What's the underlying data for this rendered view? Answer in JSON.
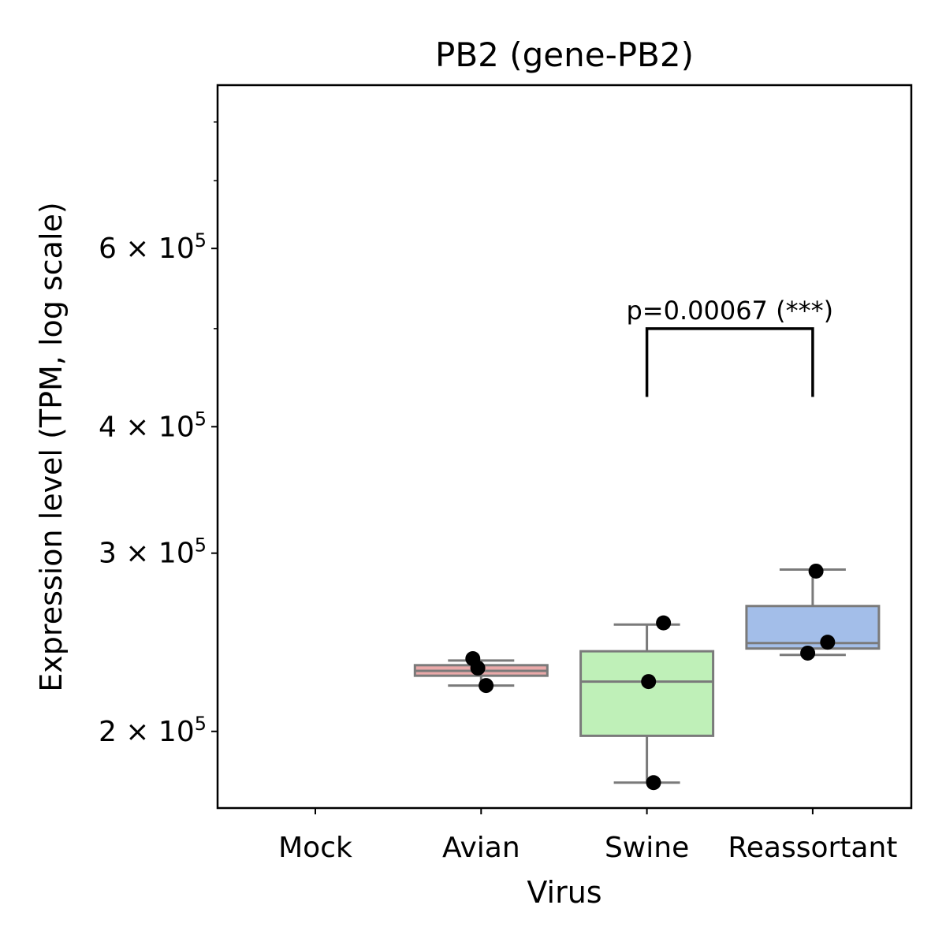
{
  "chart_data": {
    "type": "box",
    "title": "PB2 (gene-PB2)",
    "xlabel": "Virus",
    "ylabel": "Expression level (TPM, log scale)",
    "yscale": "log",
    "ylim": [
      168000,
      870000
    ],
    "yticks": [
      {
        "value": 200000,
        "label": "2 × 10",
        "exp": "5"
      },
      {
        "value": 300000,
        "label": "3 × 10",
        "exp": "5"
      },
      {
        "value": 400000,
        "label": "4 × 10",
        "exp": "5"
      },
      {
        "value": 600000,
        "label": "6 × 10",
        "exp": "5"
      }
    ],
    "yminorticks": [
      500000,
      700000,
      800000
    ],
    "categories": [
      "Mock",
      "Avian",
      "Swine",
      "Reassortant"
    ],
    "boxes": [
      {
        "category": "Mock",
        "color": null,
        "q1": null,
        "median": null,
        "q3": null,
        "whisker_low": null,
        "whisker_high": null
      },
      {
        "category": "Avian",
        "color": "#eaa9a9",
        "q1": 227000,
        "median": 229500,
        "q3": 232500,
        "whisker_low": 222000,
        "whisker_high": 235000
      },
      {
        "category": "Swine",
        "color": "#bff0b8",
        "q1": 198000,
        "median": 224000,
        "q3": 240000,
        "whisker_low": 178000,
        "whisker_high": 255000
      },
      {
        "category": "Reassortant",
        "color": "#a3bee9",
        "q1": 241500,
        "median": 244500,
        "q3": 266000,
        "whisker_low": 238000,
        "whisker_high": 289000
      }
    ],
    "points": [
      {
        "category": "Avian",
        "jitter": -0.05,
        "value": 236000
      },
      {
        "category": "Avian",
        "jitter": -0.02,
        "value": 231000
      },
      {
        "category": "Avian",
        "jitter": 0.03,
        "value": 222000
      },
      {
        "category": "Swine",
        "jitter": 0.01,
        "value": 224000
      },
      {
        "category": "Swine",
        "jitter": 0.1,
        "value": 256000
      },
      {
        "category": "Swine",
        "jitter": 0.04,
        "value": 178000
      },
      {
        "category": "Reassortant",
        "jitter": 0.02,
        "value": 288000
      },
      {
        "category": "Reassortant",
        "jitter": 0.09,
        "value": 245000
      },
      {
        "category": "Reassortant",
        "jitter": -0.03,
        "value": 239000
      }
    ],
    "significance": {
      "from": "Swine",
      "to": "Reassortant",
      "text": "p=0.00067 (***)",
      "bar_value": 500000,
      "leg_value": 428000
    },
    "grid": false,
    "legend": "none"
  }
}
